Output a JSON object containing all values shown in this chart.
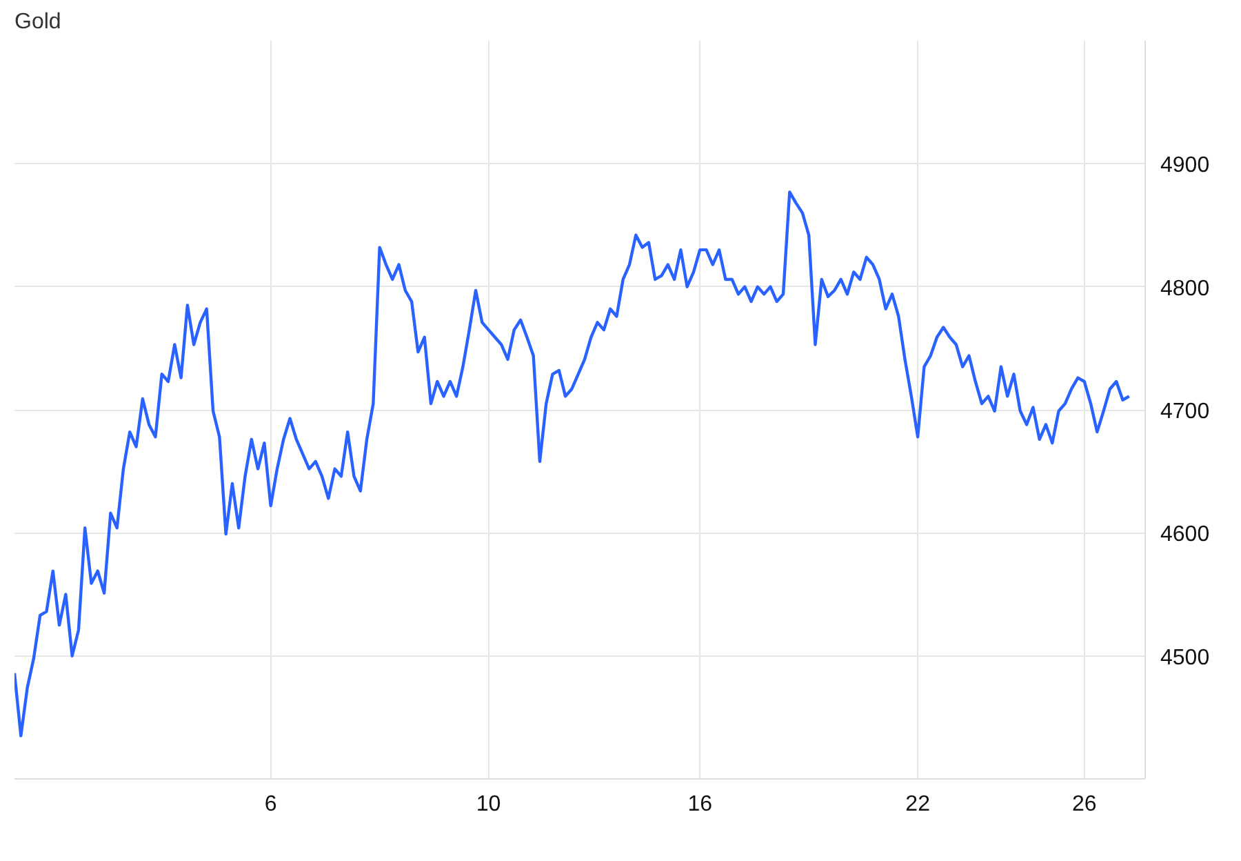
{
  "chart_data": {
    "type": "line",
    "title": "Gold",
    "categories": [
      null,
      null,
      null,
      null,
      null,
      null,
      null,
      null,
      null,
      null,
      null,
      null,
      null,
      null,
      null,
      null,
      null,
      null,
      null,
      null,
      null,
      null,
      null,
      null,
      null,
      null,
      null,
      null,
      null,
      null,
      null,
      null,
      null,
      null,
      null,
      null,
      null,
      null,
      null,
      null,
      "6",
      null,
      null,
      null,
      null,
      null,
      null,
      null,
      null,
      null,
      null,
      null,
      null,
      null,
      null,
      null,
      null,
      null,
      null,
      null,
      null,
      null,
      null,
      null,
      null,
      null,
      null,
      null,
      null,
      null,
      null,
      null,
      null,
      null,
      "10",
      null,
      null,
      null,
      null,
      null,
      null,
      null,
      null,
      null,
      null,
      null,
      null,
      null,
      null,
      null,
      null,
      null,
      null,
      null,
      null,
      null,
      null,
      null,
      null,
      null,
      null,
      null,
      null,
      null,
      null,
      null,
      null,
      "16",
      null,
      null,
      null,
      null,
      null,
      null,
      null,
      null,
      null,
      null,
      null,
      null,
      null,
      null,
      null,
      null,
      null,
      null,
      null,
      null,
      null,
      null,
      null,
      null,
      null,
      null,
      null,
      null,
      null,
      null,
      null,
      null,
      null,
      "22",
      null,
      null,
      null,
      null,
      null,
      null,
      null,
      null,
      null,
      null,
      null,
      null,
      null,
      null,
      null,
      null,
      null,
      null,
      null,
      null,
      null,
      null,
      null,
      null,
      null,
      "26",
      null,
      null,
      null,
      null,
      null,
      null,
      null
    ],
    "series": [
      {
        "color": "#2962ff",
        "values": [
          4486,
          4435,
          4474,
          4498,
          4533,
          4536,
          4569,
          4525,
          4550,
          4500,
          4521,
          4604,
          4559,
          4569,
          4551,
          4616,
          4604,
          4652,
          4682,
          4670,
          4709,
          4688,
          4678,
          4729,
          4723,
          4753,
          4726,
          4785,
          4753,
          4771,
          4782,
          4699,
          4678,
          4599,
          4640,
          4604,
          4646,
          4676,
          4652,
          4673,
          4622,
          4652,
          4676,
          4693,
          4676,
          4664,
          4652,
          4658,
          4646,
          4628,
          4652,
          4646,
          4682,
          4646,
          4634,
          4676,
          4705,
          4832,
          4818,
          4806,
          4818,
          4797,
          4788,
          4747,
          4759,
          4705,
          4723,
          4711,
          4723,
          4711,
          4735,
          4765,
          4797,
          4771,
          4765,
          4759,
          4753,
          4741,
          4765,
          4773,
          4759,
          4744,
          4658,
          4705,
          4729,
          4732,
          4711,
          4717,
          4729,
          4741,
          4759,
          4771,
          4765,
          4782,
          4776,
          4806,
          4818,
          4842,
          4832,
          4836,
          4806,
          4809,
          4818,
          4806,
          4830,
          4800,
          4812,
          4830,
          4830,
          4818,
          4830,
          4806,
          4806,
          4794,
          4800,
          4788,
          4800,
          4794,
          4800,
          4788,
          4794,
          4877,
          4868,
          4860,
          4842,
          4753,
          4806,
          4792,
          4797,
          4806,
          4794,
          4812,
          4806,
          4824,
          4818,
          4806,
          4782,
          4794,
          4776,
          4741,
          4711,
          4678,
          4735,
          4744,
          4759,
          4767,
          4759,
          4753,
          4735,
          4744,
          4723,
          4705,
          4711,
          4699,
          4735,
          4711,
          4729,
          4699,
          4688,
          4702,
          4676,
          4688,
          4673,
          4699,
          4705,
          4717,
          4726,
          4723,
          4705,
          4682,
          4699,
          4717,
          4723,
          4708,
          4711
        ]
      }
    ],
    "ylim": [
      4400,
      5000
    ],
    "yticks": [
      4500,
      4600,
      4700,
      4800,
      4900
    ],
    "grid": true,
    "marker": "none",
    "line_style": "solid"
  }
}
